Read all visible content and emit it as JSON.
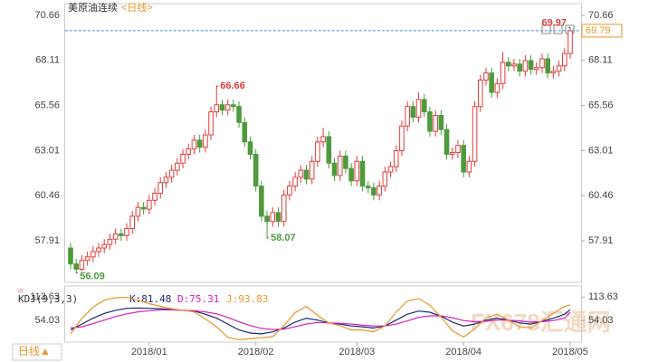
{
  "chart_data": {
    "type": "candlestick",
    "title": "美原油连续",
    "period": "<日线>",
    "period_button": "日线▲",
    "watermark": "FX678汇通网",
    "up_color": "#e03c3c",
    "down_color": "#4f9a3c",
    "last_line_color": "#4a8fd0",
    "xlim": [
      -1,
      90
    ],
    "xticks": [
      {
        "value": 14,
        "label": "2018/01"
      },
      {
        "value": 33,
        "label": "2018/02"
      },
      {
        "value": 51,
        "label": "2018/03"
      },
      {
        "value": 70,
        "label": "2018/04"
      },
      {
        "value": 89,
        "label": "2018/05"
      }
    ],
    "ylim": [
      55.66,
      71.27
    ],
    "yticks": [
      70.66,
      68.11,
      65.56,
      63.01,
      60.46,
      57.91
    ],
    "open": [
      57.5,
      56.6,
      56.3,
      56.8,
      57.0,
      57.3,
      57.5,
      57.7,
      58.0,
      58.3,
      58.2,
      58.6,
      59.3,
      59.8,
      59.7,
      60.2,
      60.6,
      61.2,
      61.5,
      61.9,
      62.3,
      62.8,
      63.1,
      63.6,
      63.2,
      63.9,
      65.2,
      65.6,
      65.3,
      65.6,
      65.5,
      64.6,
      63.5,
      62.8,
      61.0,
      59.3,
      59.0,
      59.5,
      59.0,
      60.5,
      61.0,
      61.5,
      61.9,
      61.4,
      62.4,
      63.5,
      63.8,
      62.3,
      61.6,
      62.7,
      62.0,
      61.3,
      62.4,
      61.0,
      60.9,
      60.5,
      61.0,
      61.8,
      62.1,
      63.0,
      64.4,
      65.5,
      64.9,
      65.9,
      65.2,
      64.1,
      65.0,
      64.2,
      62.8,
      62.9,
      63.3,
      61.8,
      62.4,
      65.5,
      67.0,
      67.4,
      66.3,
      66.8,
      68.0,
      67.8,
      67.9,
      67.5,
      68.1,
      67.6,
      67.7,
      68.2,
      67.4,
      67.5,
      67.8,
      68.5
    ],
    "high": [
      57.8,
      56.9,
      57.1,
      57.3,
      57.6,
      57.8,
      58.0,
      58.3,
      58.6,
      58.6,
      58.9,
      59.6,
      60.1,
      60.1,
      60.5,
      60.9,
      61.5,
      61.8,
      62.2,
      62.6,
      63.1,
      63.4,
      63.9,
      63.9,
      64.2,
      65.5,
      66.66,
      65.9,
      65.9,
      65.9,
      65.8,
      64.9,
      63.8,
      63.1,
      61.3,
      59.6,
      59.8,
      59.8,
      60.8,
      61.3,
      61.8,
      62.2,
      62.2,
      62.7,
      63.8,
      64.3,
      64.1,
      62.6,
      63.0,
      63.0,
      62.3,
      62.7,
      62.7,
      61.3,
      61.2,
      61.3,
      62.1,
      62.4,
      63.3,
      64.7,
      65.8,
      65.8,
      66.3,
      66.2,
      65.5,
      65.3,
      65.3,
      64.5,
      63.2,
      63.6,
      63.6,
      62.7,
      65.8,
      67.3,
      67.7,
      67.7,
      67.1,
      68.6,
      68.3,
      68.2,
      68.2,
      68.4,
      68.4,
      68.0,
      68.5,
      68.5,
      67.8,
      68.1,
      68.8,
      69.97
    ],
    "low": [
      56.3,
      56.09,
      56.2,
      56.5,
      56.7,
      57.0,
      57.2,
      57.4,
      57.7,
      57.9,
      57.9,
      58.3,
      59.0,
      59.4,
      59.4,
      59.9,
      60.3,
      60.9,
      61.2,
      61.6,
      62.0,
      62.5,
      62.8,
      62.9,
      62.9,
      63.6,
      64.9,
      65.0,
      65.0,
      65.2,
      64.3,
      63.2,
      62.5,
      60.7,
      59.0,
      58.07,
      58.7,
      58.7,
      58.7,
      60.2,
      60.7,
      61.2,
      61.1,
      61.1,
      62.1,
      63.2,
      62.0,
      61.3,
      61.3,
      61.7,
      61.0,
      61.0,
      60.7,
      60.6,
      60.2,
      60.2,
      60.7,
      61.5,
      61.8,
      62.7,
      64.1,
      64.6,
      64.6,
      64.9,
      63.8,
      63.8,
      63.9,
      62.5,
      62.5,
      62.6,
      61.5,
      61.5,
      62.1,
      65.2,
      66.7,
      66.0,
      66.0,
      66.5,
      67.5,
      67.5,
      67.2,
      67.2,
      67.3,
      67.3,
      67.4,
      67.1,
      67.1,
      67.2,
      67.5,
      68.2
    ],
    "close": [
      56.6,
      56.3,
      56.8,
      57.0,
      57.3,
      57.5,
      57.7,
      58.0,
      58.3,
      58.2,
      58.6,
      59.3,
      59.8,
      59.7,
      60.2,
      60.6,
      61.2,
      61.5,
      61.9,
      62.3,
      62.8,
      63.1,
      63.6,
      63.2,
      63.9,
      65.2,
      65.6,
      65.3,
      65.6,
      65.5,
      64.6,
      63.5,
      62.8,
      61.0,
      59.3,
      59.0,
      59.5,
      59.0,
      60.5,
      61.0,
      61.5,
      61.9,
      61.4,
      62.4,
      63.5,
      63.8,
      62.3,
      61.6,
      62.7,
      62.0,
      61.3,
      62.4,
      61.0,
      60.9,
      60.5,
      61.0,
      61.8,
      62.1,
      63.0,
      64.4,
      65.5,
      64.9,
      65.9,
      65.2,
      64.1,
      65.0,
      64.2,
      62.8,
      62.9,
      63.3,
      61.8,
      62.4,
      65.5,
      67.0,
      67.4,
      66.3,
      66.8,
      68.0,
      67.8,
      67.9,
      67.5,
      68.1,
      67.6,
      67.7,
      68.2,
      67.4,
      67.5,
      67.8,
      68.5,
      69.79
    ],
    "indicator": {
      "type": "line",
      "name": "KDJ(9,3,3)",
      "ylim": [
        -1,
        142
      ],
      "yticks": [
        113.63,
        54.03
      ],
      "x": [
        0,
        2,
        4,
        6,
        8,
        10,
        12,
        14,
        16,
        18,
        20,
        22,
        24,
        26,
        28,
        30,
        32,
        34,
        36,
        38,
        40,
        42,
        44,
        46,
        48,
        50,
        52,
        54,
        56,
        58,
        60,
        62,
        64,
        66,
        68,
        70,
        72,
        74,
        76,
        78,
        80,
        82,
        84,
        86,
        88,
        89
      ],
      "series": [
        {
          "name": "K:81.48",
          "color": "#1a2a6c",
          "values": [
            30,
            45,
            60,
            72,
            80,
            85,
            86,
            85,
            84,
            82,
            80,
            78,
            70,
            60,
            45,
            30,
            22,
            20,
            25,
            35,
            50,
            60,
            55,
            48,
            45,
            40,
            38,
            35,
            40,
            55,
            70,
            78,
            75,
            65,
            50,
            40,
            45,
            55,
            60,
            55,
            48,
            45,
            52,
            60,
            70,
            81.48
          ]
        },
        {
          "name": "D:75.31",
          "color": "#d020c0",
          "values": [
            35,
            38,
            46,
            55,
            64,
            71,
            76,
            79,
            81,
            81,
            80,
            79,
            76,
            71,
            62,
            51,
            41,
            34,
            31,
            32,
            38,
            45,
            49,
            48,
            47,
            45,
            42,
            40,
            40,
            45,
            53,
            62,
            66,
            66,
            61,
            54,
            51,
            52,
            55,
            55,
            53,
            50,
            51,
            54,
            60,
            75.31
          ]
        },
        {
          "name": "J:93.83",
          "color": "#e8962a",
          "values": [
            20,
            59,
            88,
            106,
            112,
            113,
            106,
            97,
            90,
            84,
            80,
            76,
            58,
            38,
            11,
            5,
            8,
            10,
            13,
            41,
            74,
            90,
            67,
            48,
            41,
            30,
            30,
            25,
            40,
            75,
            104,
            110,
            93,
            63,
            28,
            12,
            33,
            61,
            70,
            55,
            38,
            35,
            54,
            72,
            90,
            93.83
          ]
        }
      ]
    }
  }
}
